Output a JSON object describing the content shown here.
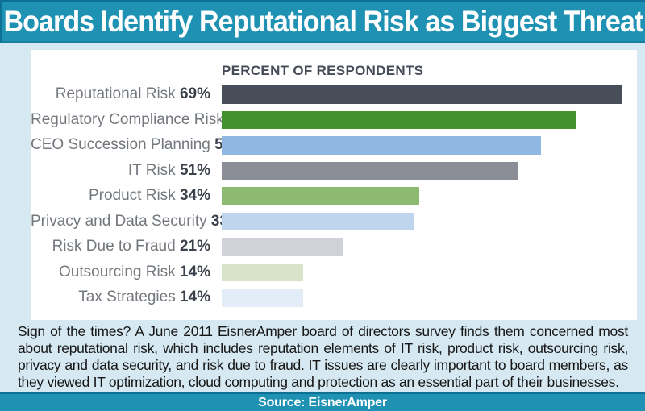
{
  "header": {
    "title": "Boards Identify Reputational Risk as Biggest Threat"
  },
  "chart_data": {
    "type": "bar",
    "orientation": "horizontal",
    "title": "PERCENT OF RESPONDENTS",
    "categories": [
      "Reputational Risk",
      "Regulatory Compliance Risk",
      "CEO Succession Planning",
      "IT Risk",
      "Product Risk",
      "Privacy and Data Security",
      "Risk Due to Fraud",
      "Outsourcing Risk",
      "Tax Strategies"
    ],
    "values": [
      69,
      61,
      55,
      51,
      34,
      33,
      21,
      14,
      14
    ],
    "unit": "%",
    "xlim": [
      0,
      70
    ],
    "grid": false,
    "legend": "none",
    "bar_colors": [
      "#474e59",
      "#43902f",
      "#8fb7e2",
      "#8b8e96",
      "#8cba70",
      "#bfd4ed",
      "#cfd2d8",
      "#d8e4c9",
      "#e3edf8"
    ],
    "label_color": "#73787e",
    "value_color": "#3b424c"
  },
  "footer": {
    "text": "Sign of the times? A June 2011 EisnerAmper board of directors survey finds them concerned most about reputational risk, which includes reputation elements of IT risk, product risk, outsourcing risk, privacy and data security, and risk due to fraud. IT issues are clearly important to board members, as they viewed IT optimization, cloud computing and protection as an essential part of their businesses."
  },
  "source": {
    "label": "Source: EisnerAmper"
  },
  "theme": {
    "banner_color": "#1f92b4",
    "banner_border_color": "#0e7193",
    "page_background": "#d6e8f1",
    "panel_background": "#ffffff"
  }
}
